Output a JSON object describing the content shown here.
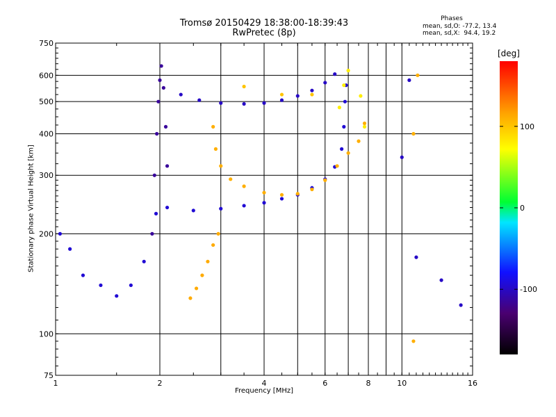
{
  "header": {
    "title": "Tromsø 20150429 18:38:00-18:39:43",
    "subtitle": "RwPretec (8p)"
  },
  "phases": {
    "heading": "Phases",
    "o_line": "mean, sd,O: -77.2, 13.4",
    "x_line": "mean, sd,X:  94.4, 19.2"
  },
  "colorbar": {
    "unit": "[deg]",
    "range": [
      -180,
      180
    ],
    "ticks": [
      100,
      0,
      -100
    ]
  },
  "chart_data": {
    "type": "scatter",
    "title": "Tromsø 20150429 18:38:00-18:39:43",
    "subtitle": "RwPretec (8p)",
    "xlabel": "Frequency [MHz]",
    "ylabel": "Stationary phase Virtual Height [km]",
    "x_scale": "log",
    "y_scale": "log",
    "xlim": [
      1,
      16
    ],
    "ylim": [
      75,
      750
    ],
    "x_ticks": [
      1,
      2,
      4,
      6,
      8,
      10,
      16
    ],
    "x_minor": [
      3,
      5,
      7,
      9
    ],
    "y_ticks": [
      75,
      100,
      200,
      300,
      400,
      500,
      600,
      750
    ],
    "grid": true,
    "color_by": "phase (deg)",
    "series": [
      {
        "phase": -95,
        "points": [
          [
            1.03,
            200
          ],
          [
            1.1,
            180
          ],
          [
            1.2,
            150
          ],
          [
            1.35,
            140
          ],
          [
            1.5,
            130
          ],
          [
            1.65,
            140
          ],
          [
            1.8,
            165
          ],
          [
            1.95,
            230
          ],
          [
            2.1,
            240
          ],
          [
            2.5,
            235
          ],
          [
            3.0,
            238
          ],
          [
            3.5,
            243
          ],
          [
            4.0,
            248
          ],
          [
            4.5,
            255
          ],
          [
            5.0,
            262
          ],
          [
            5.5,
            275
          ],
          [
            6.0,
            292
          ],
          [
            6.4,
            318
          ],
          [
            6.7,
            360
          ],
          [
            6.8,
            420
          ],
          [
            6.85,
            500
          ],
          [
            6.9,
            560
          ]
        ]
      },
      {
        "phase": -100,
        "points": [
          [
            2.3,
            525
          ],
          [
            2.6,
            505
          ],
          [
            3.0,
            495
          ],
          [
            3.5,
            492
          ],
          [
            4.0,
            495
          ],
          [
            4.5,
            505
          ],
          [
            5.0,
            520
          ],
          [
            5.5,
            540
          ],
          [
            6.0,
            570
          ],
          [
            6.4,
            605
          ]
        ]
      },
      {
        "phase": -115,
        "points": [
          [
            1.9,
            200
          ],
          [
            1.93,
            300
          ],
          [
            1.96,
            400
          ],
          [
            1.98,
            500
          ],
          [
            2.0,
            580
          ],
          [
            2.02,
            640
          ],
          [
            2.05,
            550
          ],
          [
            2.08,
            420
          ],
          [
            2.1,
            320
          ]
        ]
      },
      {
        "phase": 110,
        "points": [
          [
            2.85,
            420
          ],
          [
            2.9,
            360
          ],
          [
            3.0,
            320
          ],
          [
            3.2,
            292
          ],
          [
            3.5,
            278
          ],
          [
            4.0,
            266
          ],
          [
            4.5,
            262
          ],
          [
            5.0,
            264
          ],
          [
            5.5,
            272
          ],
          [
            6.0,
            290
          ],
          [
            6.5,
            320
          ],
          [
            7.0,
            350
          ],
          [
            7.5,
            380
          ],
          [
            7.8,
            430
          ]
        ]
      },
      {
        "phase": 112,
        "points": [
          [
            2.45,
            128
          ],
          [
            2.55,
            137
          ],
          [
            2.65,
            150
          ],
          [
            2.75,
            165
          ],
          [
            2.85,
            185
          ],
          [
            2.95,
            200
          ]
        ]
      },
      {
        "phase": 80,
        "points": [
          [
            6.6,
            480
          ],
          [
            6.8,
            560
          ],
          [
            7.0,
            620
          ],
          [
            7.6,
            520
          ],
          [
            7.8,
            420
          ]
        ]
      },
      {
        "phase": 100,
        "points": [
          [
            3.5,
            555
          ],
          [
            4.5,
            525
          ],
          [
            5.5,
            525
          ]
        ]
      },
      {
        "phase": -100,
        "points": [
          [
            10.0,
            340
          ],
          [
            10.5,
            580
          ],
          [
            11.0,
            170
          ],
          [
            13.0,
            145
          ],
          [
            14.8,
            122
          ]
        ]
      },
      {
        "phase": 110,
        "points": [
          [
            10.8,
            95
          ],
          [
            10.8,
            400
          ],
          [
            11.1,
            600
          ]
        ]
      }
    ]
  }
}
